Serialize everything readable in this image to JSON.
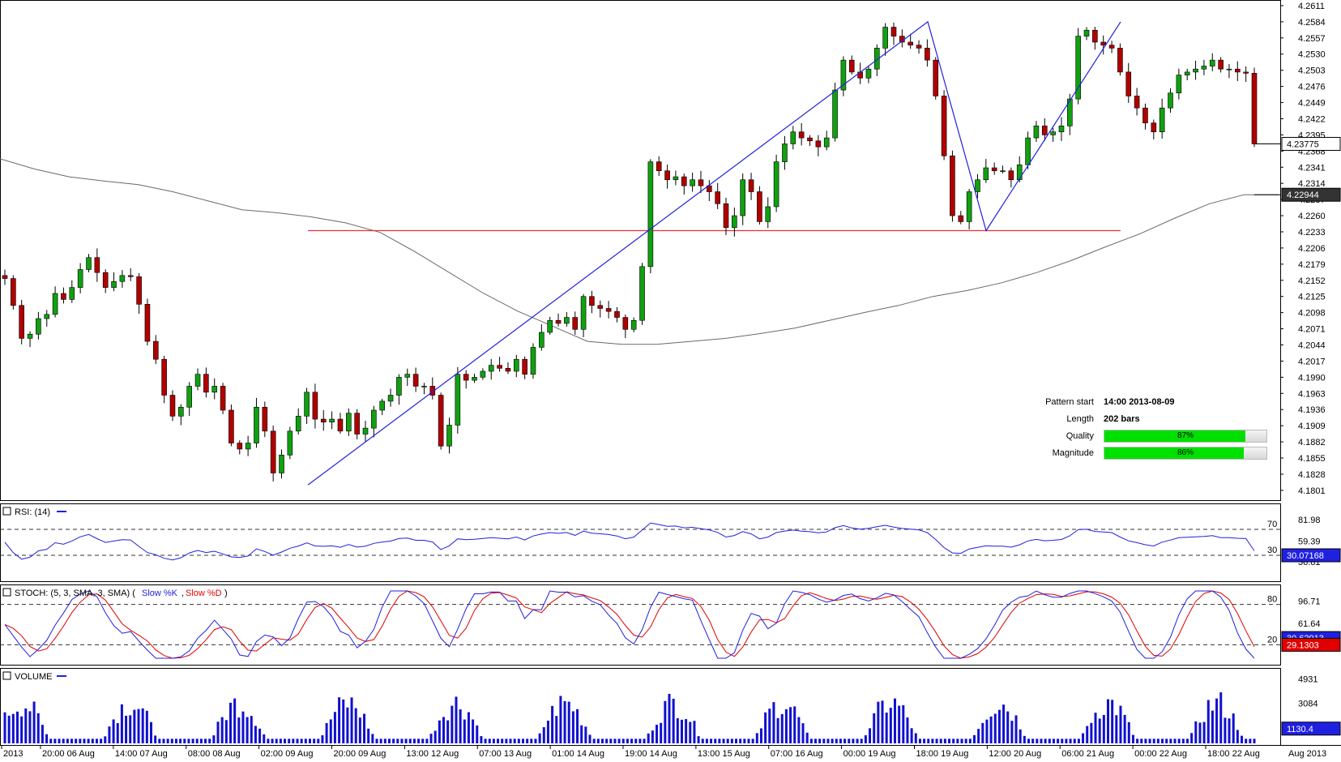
{
  "chart_data": [
    {
      "type": "candlestick",
      "name_visible": false,
      "price_ticks": [
        "4.2611",
        "4.2584",
        "4.2557",
        "4.2530",
        "4.2503",
        "4.2476",
        "4.2449",
        "4.2422",
        "4.2395",
        "4.2368",
        "4.2341",
        "4.2314",
        "4.2287",
        "4.2260",
        "4.2233",
        "4.2206",
        "4.2179",
        "4.2152",
        "4.2125",
        "4.2098",
        "4.2071",
        "4.2044",
        "4.2017",
        "4.1990",
        "4.1963",
        "4.1936",
        "4.1909",
        "4.1882",
        "4.1855",
        "4.1828",
        "4.1801"
      ],
      "ylim": [
        4.179,
        4.2615
      ],
      "last_price_label": "4.23775",
      "ma_label": "4.22944",
      "pattern_line": {
        "price": 4.2235
      },
      "pattern_points": [
        4.181,
        4.2584,
        4.2235,
        4.2584
      ],
      "info": {
        "pattern_start_label": "Pattern start",
        "pattern_start_value": "14:00 2013-08-09",
        "length_label": "Length",
        "length_value": "202 bars",
        "quality_label": "Quality",
        "quality_value": "87%",
        "quality_pct": 87,
        "magnitude_label": "Magnitude",
        "magnitude_value": "86%",
        "magnitude_pct": 86
      },
      "x_labels": [
        "2013",
        "20:00 06 Aug",
        "14:00 07 Aug",
        "08:00 08 Aug",
        "02:00 09 Aug",
        "20:00 09 Aug",
        "13:00 12 Aug",
        "07:00 13 Aug",
        "01:00 14 Aug",
        "19:00 14 Aug",
        "13:00 15 Aug",
        "07:00 16 Aug",
        "00:00 19 Aug",
        "18:00 19 Aug",
        "12:00 20 Aug",
        "06:00 21 Aug",
        "00:00 22 Aug",
        "18:00 22 Aug"
      ],
      "x_corner_label": "Aug 2013",
      "closes": [
        4.2155,
        4.211,
        4.2055,
        4.2062,
        4.2088,
        4.2095,
        4.213,
        4.212,
        4.214,
        4.217,
        4.219,
        4.2165,
        4.214,
        4.215,
        4.216,
        4.2158,
        4.2112,
        4.205,
        4.202,
        4.196,
        4.1925,
        4.194,
        4.1975,
        4.1995,
        4.1965,
        4.1975,
        4.1935,
        4.188,
        4.187,
        4.188,
        4.194,
        4.19,
        4.183,
        4.186,
        4.19,
        4.1925,
        4.1965,
        4.192,
        4.1915,
        4.192,
        4.19,
        4.193,
        4.1895,
        4.1905,
        4.1935,
        4.195,
        4.196,
        4.199,
        4.1995,
        4.1975,
        4.1975,
        4.196,
        4.1875,
        4.191,
        4.1995,
        4.1985,
        4.199,
        4.2,
        4.201,
        4.2005,
        4.2,
        4.202,
        4.1995,
        4.204,
        4.2065,
        4.2085,
        4.208,
        4.209,
        4.207,
        4.2125,
        4.211,
        4.2105,
        4.21,
        4.209,
        4.207,
        4.2085,
        4.2175,
        4.235,
        4.2335,
        4.232,
        4.2325,
        4.231,
        4.232,
        4.231,
        4.23,
        4.228,
        4.224,
        4.226,
        4.232,
        4.23,
        4.225,
        4.2275,
        4.235,
        4.238,
        4.24,
        4.239,
        4.2385,
        4.2375,
        4.239,
        4.247,
        4.252,
        4.25,
        4.249,
        4.2505,
        4.254,
        4.2575,
        4.256,
        4.255,
        4.2545,
        4.254,
        4.252,
        4.246,
        4.236,
        4.226,
        4.225,
        4.23,
        4.232,
        4.234,
        4.2335,
        4.2335,
        4.232,
        4.2345,
        4.239,
        4.241,
        4.2395,
        4.24,
        4.241,
        4.2455,
        4.256,
        4.257,
        4.255,
        4.2545,
        4.254,
        4.25,
        4.246,
        4.244,
        4.2415,
        4.24,
        4.244,
        4.2465,
        4.2495,
        4.25,
        4.2505,
        4.251,
        4.252,
        4.2505,
        4.2505,
        4.25,
        4.2498,
        4.238
      ],
      "ma_values": [
        4.2355,
        4.2338,
        4.2325,
        4.2318,
        4.2312,
        4.23,
        4.2285,
        4.227,
        4.2265,
        4.2258,
        4.2248,
        4.2232,
        4.22,
        4.2165,
        4.213,
        4.21,
        4.2075,
        4.205,
        4.2045,
        4.2045,
        4.205,
        4.2055,
        4.2063,
        4.2072,
        4.2085,
        4.2098,
        4.211,
        4.2125,
        4.2135,
        4.2148,
        4.2165,
        4.2185,
        4.2208,
        4.223,
        4.2256,
        4.228,
        4.2295,
        4.2295
      ],
      "rsi": {
        "label": "RSI: (14)",
        "ticks": [
          "81.98",
          "59.39",
          "36.81"
        ],
        "levels": [
          70,
          30
        ],
        "last_label": "30.07168"
      },
      "stoch": {
        "label": "STOCH: (5, 3, SMA, 3, SMA)",
        "k_label": "Slow %K",
        "d_label": "Slow %D",
        "ticks": [
          "96.71",
          "61.64",
          "26.58"
        ],
        "levels": [
          80,
          20
        ],
        "k_last_label": "30.62913",
        "d_last_label": "29.1303"
      },
      "volume": {
        "label": "VOLUME",
        "ticks": [
          "4931",
          "3084",
          "1130.4"
        ],
        "last_label": "1130.4"
      }
    }
  ],
  "colors": {
    "bull": "#10a010",
    "bear": "#b00000",
    "pattern": "#2020e0",
    "support": "#e83030",
    "ma": "#6a6a6a",
    "stoch_d": "#e00000",
    "volume": "#1010d0",
    "dashed": "#333333"
  }
}
